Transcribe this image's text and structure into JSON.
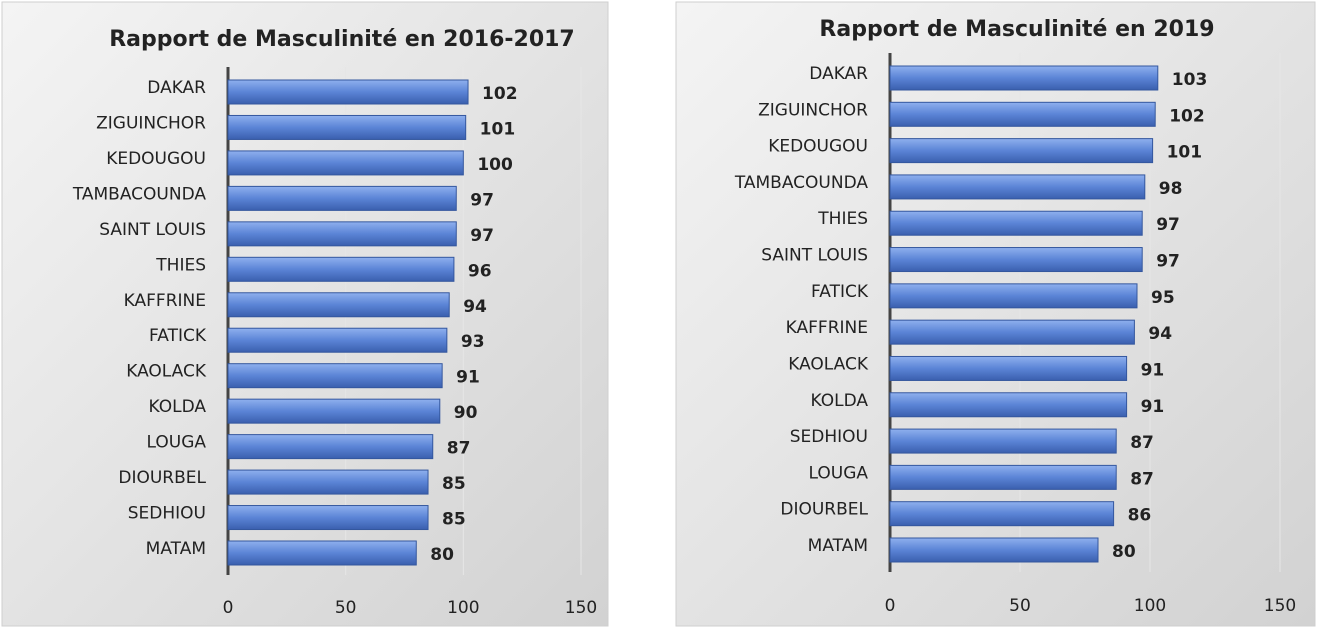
{
  "chart_data": [
    {
      "type": "bar",
      "orientation": "horizontal",
      "title": "Rapport de Masculinité en 2016-2017",
      "categories": [
        "DAKAR",
        "ZIGUINCHOR",
        "KEDOUGOU",
        "TAMBACOUNDA",
        "SAINT LOUIS",
        "THIES",
        "KAFFRINE",
        "FATICK",
        "KAOLACK",
        "KOLDA",
        "LOUGA",
        "DIOURBEL",
        "SEDHIOU",
        "MATAM"
      ],
      "values": [
        102,
        101,
        100,
        97,
        97,
        96,
        94,
        93,
        91,
        90,
        87,
        85,
        85,
        80
      ],
      "color": "#5b84d6",
      "xlim": [
        0,
        150
      ],
      "xticks": [
        0,
        50,
        100,
        150
      ]
    },
    {
      "type": "bar",
      "orientation": "horizontal",
      "title": "Rapport de Masculinité en 2019",
      "categories": [
        "DAKAR",
        "ZIGUINCHOR",
        "KEDOUGOU",
        "TAMBACOUNDA",
        "THIES",
        "SAINT LOUIS",
        "FATICK",
        "KAFFRINE",
        "KAOLACK",
        "KOLDA",
        "SEDHIOU",
        "LOUGA",
        "DIOURBEL",
        "MATAM"
      ],
      "values": [
        103,
        102,
        101,
        98,
        97,
        97,
        95,
        94,
        91,
        91,
        87,
        87,
        86,
        80
      ],
      "color": "#5b84d6",
      "xlim": [
        0,
        150
      ],
      "xticks": [
        0,
        50,
        100,
        150
      ]
    }
  ]
}
